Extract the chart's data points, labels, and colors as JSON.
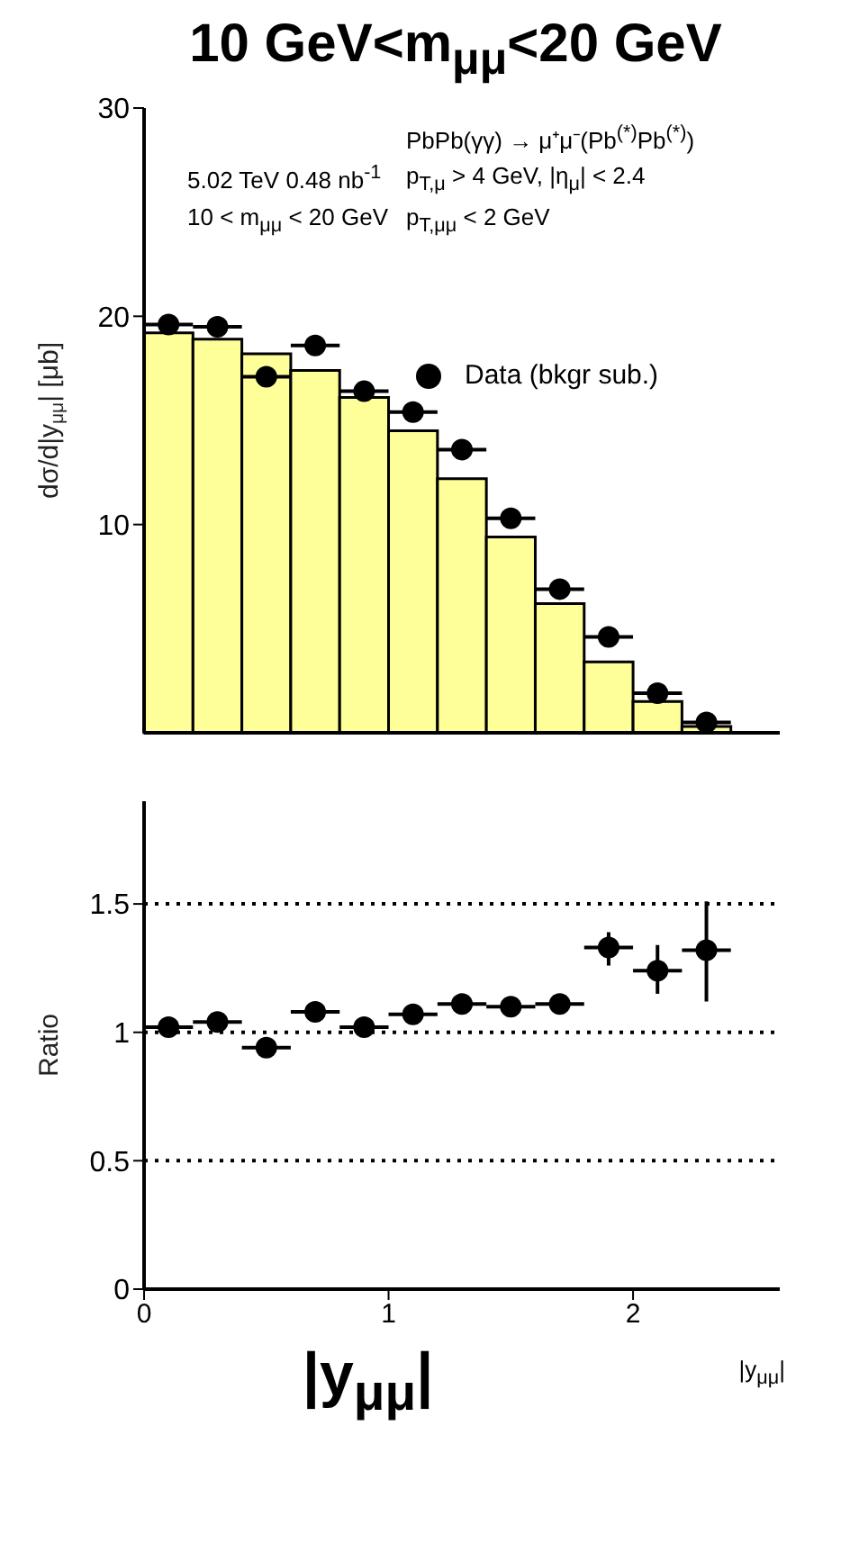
{
  "chart_data": [
    {
      "type": "histogram",
      "title": "10 GeV<m$_{μμ}$<20 GeV",
      "ylabel": "dσ/d|y$_{μμ}$| [μb]",
      "annotations": [
        "PbPb(γγ) → μ⁺μ⁻(Pb$^{(*)}$Pb$^{(*)}$)",
        "5.02 TeV 0.48 nb$^{-1}$",
        "p$_{T,μ}$ > 4 GeV, |η$_{μ}$| < 2.4",
        "10 < m$_{μμ}$ < 20 GeV",
        "p$_{T,μμ}$ < 2 GeV"
      ],
      "bins": [
        0,
        0.2,
        0.4,
        0.6,
        0.8,
        1.0,
        1.2,
        1.4,
        1.6,
        1.8,
        2.0,
        2.2,
        2.4
      ],
      "series": [
        {
          "type": "histogram",
          "color": "#ffff99",
          "values": [
            19.2,
            18.9,
            18.2,
            17.4,
            16.1,
            14.5,
            12.2,
            9.4,
            6.2,
            3.4,
            1.5,
            0.3
          ]
        },
        {
          "type": "scatter",
          "name": "Data (bkgr sub.)",
          "color": "#000000",
          "x": [
            0.1,
            0.3,
            0.5,
            0.7,
            0.9,
            1.1,
            1.3,
            1.5,
            1.7,
            1.9,
            2.1,
            2.3
          ],
          "values": [
            19.6,
            19.5,
            17.1,
            18.6,
            16.4,
            15.4,
            13.6,
            10.3,
            6.9,
            4.6,
            1.9,
            0.5
          ],
          "xerrors": [
            0.1,
            0.1,
            0.1,
            0.1,
            0.1,
            0.1,
            0.1,
            0.1,
            0.1,
            0.1,
            0.1,
            0.1
          ]
        }
      ],
      "xlim": [
        0,
        2.6
      ],
      "ylim": [
        0,
        30
      ],
      "yticks": [
        10,
        20,
        30
      ],
      "tick_labels": "y",
      "legend": "top right",
      "marker": "circle",
      "grid": false
    },
    {
      "type": "scatter",
      "xlabel": "|y$_{μμ}$|",
      "ylabel": "Ratio",
      "annotations": [
        "|y$_{μμ}$|"
      ],
      "x": [
        0.1,
        0.3,
        0.5,
        0.7,
        0.9,
        1.1,
        1.3,
        1.5,
        1.7,
        1.9,
        2.1,
        2.3
      ],
      "series": [
        {
          "color": "#000000",
          "values": [
            1.02,
            1.04,
            0.94,
            1.08,
            1.02,
            1.07,
            1.11,
            1.1,
            1.11,
            1.33,
            1.24,
            1.32
          ],
          "errors": [
            null,
            null,
            null,
            null,
            null,
            null,
            null,
            null,
            null,
            [
              1.26,
              1.39
            ],
            [
              1.15,
              1.34
            ],
            [
              1.12,
              1.51
            ]
          ],
          "xerrors": [
            0.1,
            0.1,
            0.1,
            0.1,
            0.1,
            0.1,
            0.1,
            0.1,
            0.1,
            0.1,
            0.1,
            0.1
          ]
        }
      ],
      "xlim": [
        0,
        2.6
      ],
      "xticks": [
        0,
        1,
        2
      ],
      "ylim": [
        0,
        1.9
      ],
      "yticks": [
        0,
        0.5,
        1,
        1.5
      ],
      "marker": "circle",
      "grid": false,
      "ref_lines": [
        {
          "axis": "y",
          "value": 1.5,
          "line_style": "dotted"
        },
        {
          "axis": "y",
          "value": 1,
          "line_style": "dotted"
        },
        {
          "axis": "y",
          "value": 0.5,
          "line_style": "dotted"
        }
      ]
    }
  ]
}
